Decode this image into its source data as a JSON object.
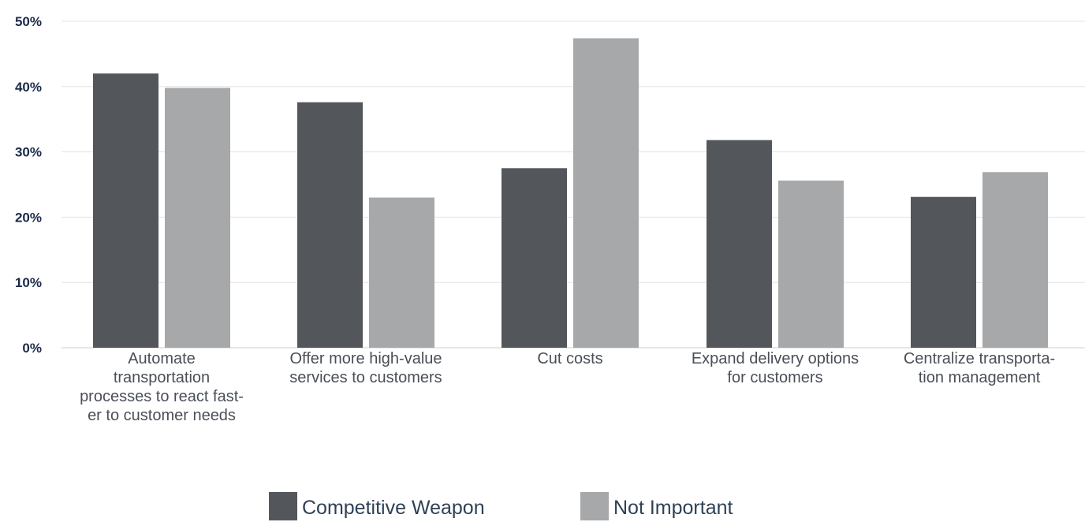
{
  "chart_data": {
    "type": "bar",
    "categories": [
      [
        "Automate",
        "transportation",
        "processes to react fast-",
        "er to customer needs"
      ],
      [
        "Offer more high-value",
        "services to customers"
      ],
      [
        "Cut costs"
      ],
      [
        "Expand delivery options",
        "for customers"
      ],
      [
        "Centralize transporta-",
        "tion management"
      ]
    ],
    "series": [
      {
        "name": "Competitive Weapon",
        "color": "#53565a",
        "values": [
          42,
          37.6,
          27.5,
          31.8,
          23.1
        ]
      },
      {
        "name": "Not Important",
        "color": "#a7a8aa",
        "values": [
          39.8,
          23.0,
          47.4,
          25.6,
          26.9
        ]
      }
    ],
    "yticks": [
      "0%",
      "10%",
      "20%",
      "30%",
      "40%",
      "50%"
    ],
    "ylim": [
      0,
      50
    ],
    "grid": true,
    "legend_position": "bottom-center"
  }
}
